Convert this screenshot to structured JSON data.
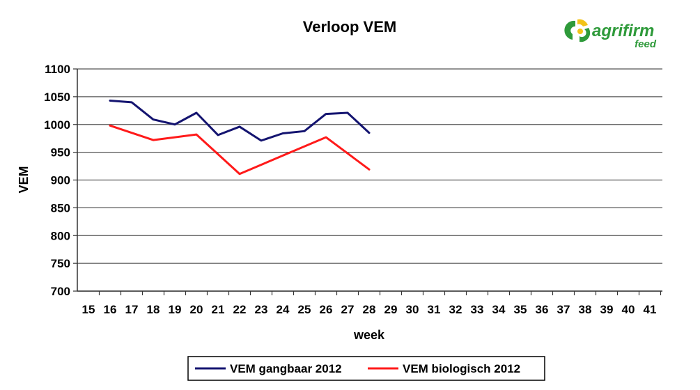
{
  "logo": {
    "word": "agrifirm",
    "sub": "feed",
    "color_green": "#2e9a3a",
    "color_yellow": "#f2c318"
  },
  "chart_data": {
    "type": "line",
    "title": "Verloop VEM",
    "xlabel": "week",
    "ylabel": "VEM",
    "xlim": [
      15,
      41
    ],
    "ylim": [
      700,
      1100
    ],
    "x_ticks": [
      15,
      16,
      17,
      18,
      19,
      20,
      21,
      22,
      23,
      24,
      25,
      26,
      27,
      28,
      29,
      30,
      31,
      32,
      33,
      34,
      35,
      36,
      37,
      38,
      39,
      40,
      41
    ],
    "y_ticks": [
      700,
      750,
      800,
      850,
      900,
      950,
      1000,
      1050,
      1100
    ],
    "grid": "horizontal",
    "legend_position": "bottom",
    "series": [
      {
        "name": "VEM gangbaar 2012",
        "color": "#141470",
        "points": [
          [
            16,
            1043
          ],
          [
            17,
            1040
          ],
          [
            18,
            1009
          ],
          [
            19,
            1000
          ],
          [
            20,
            1021
          ],
          [
            21,
            981
          ],
          [
            22,
            996
          ],
          [
            23,
            971
          ],
          [
            24,
            984
          ],
          [
            25,
            988
          ],
          [
            26,
            1019
          ],
          [
            27,
            1021
          ],
          [
            28,
            985
          ]
        ]
      },
      {
        "name": "VEM biologisch 2012",
        "color": "#ff1a1a",
        "points": [
          [
            16,
            998
          ],
          [
            18,
            972
          ],
          [
            20,
            982
          ],
          [
            22,
            911
          ],
          [
            24,
            944
          ],
          [
            26,
            977
          ],
          [
            28,
            919
          ]
        ]
      }
    ]
  }
}
